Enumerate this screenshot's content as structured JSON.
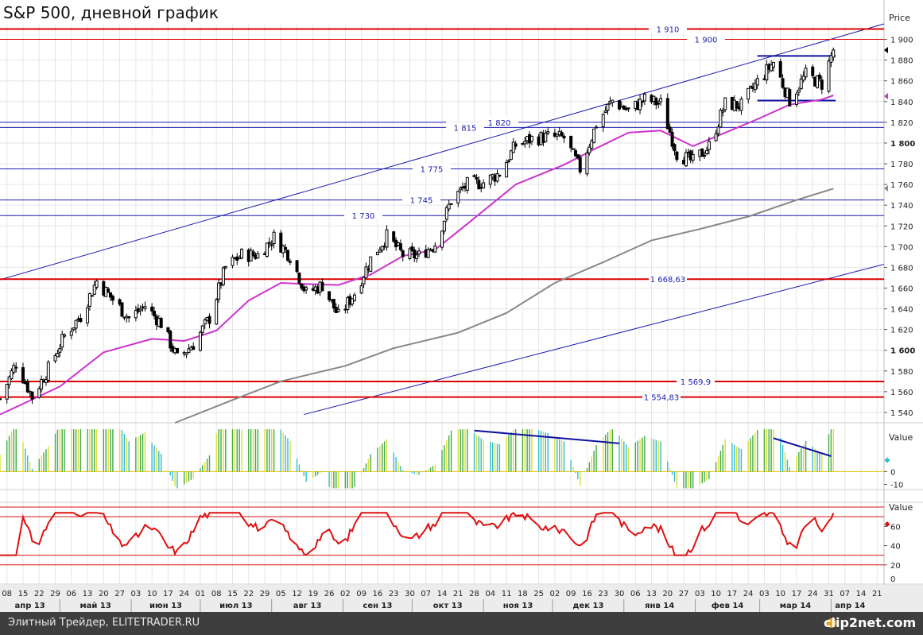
{
  "title": "S&P 500, дневной график",
  "footer": {
    "text": "Элитный Трейдер, ELITETRADER.RU",
    "logo": "clip2net.com"
  },
  "colors": {
    "grid": "#e6e6e6",
    "candle": "#000000",
    "sma_short": "#cc33cc",
    "sma_long": "#888888",
    "hline_red": "#dd0000",
    "hline_blue": "#1b1bb0",
    "osc_green": "#44aa44",
    "osc_cyan": "#33bbcc",
    "osc_yellow": "#dddd33",
    "rsi": "#dd1111"
  },
  "chart_data": [
    {
      "type": "candlestick",
      "title": "S&P 500, дневной график",
      "ylabel": "Price",
      "ylim": [
        1530,
        1915
      ],
      "y_ticks": [
        1540,
        1560,
        1580,
        1600,
        1620,
        1640,
        1660,
        1680,
        1700,
        1720,
        1740,
        1760,
        1780,
        1800,
        1820,
        1840,
        1860,
        1880,
        1900
      ],
      "y_tick_labels": [
        "1 540",
        "1 560",
        "1 580",
        "1 600",
        "1 620",
        "1 640",
        "1 660",
        "1 680",
        "1 700",
        "1 720",
        "1 740",
        "1 760",
        "1 780",
        "1 800",
        "1 820",
        "1 840",
        "1 860",
        "1 880",
        "1 900"
      ],
      "bold_ticks": [
        "1 600",
        "1 800"
      ],
      "x_start": "2013-04-05",
      "x_end": "2014-04-24",
      "x_tick_labels": [
        "08",
        "15",
        "22",
        "29",
        "06",
        "13",
        "20",
        "27",
        "03",
        "10",
        "17",
        "24",
        "01",
        "08",
        "15",
        "22",
        "29",
        "05",
        "12",
        "19",
        "26",
        "02",
        "09",
        "16",
        "23",
        "30",
        "07",
        "14",
        "21",
        "28",
        "04",
        "11",
        "18",
        "25",
        "02",
        "09",
        "16",
        "23",
        "30",
        "06",
        "13",
        "20",
        "27",
        "03",
        "10",
        "17",
        "24",
        "03",
        "10",
        "17",
        "24",
        "31",
        "07",
        "14",
        "21"
      ],
      "month_labels": [
        "апр 13",
        "май 13",
        "июн 13",
        "июл 13",
        "авг 13",
        "сен 13",
        "окт 13",
        "ноя 13",
        "дек 13",
        "янв 14",
        "фев 14",
        "мар 14",
        "апр 14"
      ],
      "horizontal_levels": [
        {
          "label": "1 910",
          "value": 1910,
          "color": "red"
        },
        {
          "label": "1 900",
          "value": 1900,
          "color": "red"
        },
        {
          "label": "1 820",
          "value": 1820,
          "color": "blue"
        },
        {
          "label": "1 815",
          "value": 1815,
          "color": "blue"
        },
        {
          "label": "1 775",
          "value": 1775,
          "color": "blue"
        },
        {
          "label": "1 745",
          "value": 1745,
          "color": "blue"
        },
        {
          "label": "1 730",
          "value": 1730,
          "color": "blue"
        },
        {
          "label": "1 668,63",
          "value": 1668.63,
          "color": "red"
        },
        {
          "label": "1 569,9",
          "value": 1569.9,
          "color": "red"
        },
        {
          "label": "1 554,83",
          "value": 1554.83,
          "color": "red"
        }
      ],
      "channel_lines": [
        {
          "from": [
            "2013-04-05",
            1668
          ],
          "to": [
            "2014-04-24",
            1915
          ]
        },
        {
          "from": [
            "2013-08-15",
            1538
          ],
          "to": [
            "2014-04-24",
            1683
          ]
        }
      ],
      "range_lines": [
        {
          "from": "2014-02-28",
          "to": "2014-04-03",
          "value": 1884
        },
        {
          "from": "2014-02-28",
          "to": "2014-04-03",
          "value": 1841
        }
      ],
      "series": [
        {
          "name": "close",
          "points": [
            [
              "2013-04-05",
              1553
            ],
            [
              "2013-04-12",
              1588
            ],
            [
              "2013-04-19",
              1555
            ],
            [
              "2013-04-26",
              1582
            ],
            [
              "2013-05-03",
              1614
            ],
            [
              "2013-05-10",
              1633
            ],
            [
              "2013-05-17",
              1667
            ],
            [
              "2013-05-24",
              1649
            ],
            [
              "2013-05-31",
              1631
            ],
            [
              "2013-06-07",
              1643
            ],
            [
              "2013-06-14",
              1626
            ],
            [
              "2013-06-21",
              1592
            ],
            [
              "2013-06-28",
              1606
            ],
            [
              "2013-07-05",
              1631
            ],
            [
              "2013-07-12",
              1680
            ],
            [
              "2013-07-19",
              1692
            ],
            [
              "2013-07-26",
              1692
            ],
            [
              "2013-08-02",
              1709
            ],
            [
              "2013-08-09",
              1691
            ],
            [
              "2013-08-16",
              1655
            ],
            [
              "2013-08-23",
              1663
            ],
            [
              "2013-08-30",
              1633
            ],
            [
              "2013-09-06",
              1655
            ],
            [
              "2013-09-13",
              1688
            ],
            [
              "2013-09-20",
              1710
            ],
            [
              "2013-09-27",
              1692
            ],
            [
              "2013-10-04",
              1691
            ],
            [
              "2013-10-11",
              1703
            ],
            [
              "2013-10-18",
              1745
            ],
            [
              "2013-10-25",
              1760
            ],
            [
              "2013-11-01",
              1762
            ],
            [
              "2013-11-08",
              1771
            ],
            [
              "2013-11-15",
              1798
            ],
            [
              "2013-11-22",
              1804
            ],
            [
              "2013-11-29",
              1806
            ],
            [
              "2013-12-06",
              1805
            ],
            [
              "2013-12-13",
              1775
            ],
            [
              "2013-12-20",
              1818
            ],
            [
              "2013-12-27",
              1841
            ],
            [
              "2014-01-03",
              1831
            ],
            [
              "2014-01-10",
              1842
            ],
            [
              "2014-01-17",
              1838
            ],
            [
              "2014-01-24",
              1790
            ],
            [
              "2014-01-31",
              1782
            ],
            [
              "2014-02-07",
              1797
            ],
            [
              "2014-02-14",
              1838
            ],
            [
              "2014-02-21",
              1836
            ],
            [
              "2014-02-28",
              1859
            ],
            [
              "2014-03-07",
              1878
            ],
            [
              "2014-03-14",
              1841
            ],
            [
              "2014-03-21",
              1866
            ],
            [
              "2014-03-28",
              1857
            ],
            [
              "2014-04-02",
              1890
            ]
          ]
        },
        {
          "name": "sma_short",
          "points": [
            [
              "2013-04-05",
              1538
            ],
            [
              "2013-05-01",
              1565
            ],
            [
              "2013-05-20",
              1598
            ],
            [
              "2013-06-10",
              1611
            ],
            [
              "2013-06-24",
              1609
            ],
            [
              "2013-07-08",
              1619
            ],
            [
              "2013-07-22",
              1648
            ],
            [
              "2013-08-05",
              1665
            ],
            [
              "2013-08-15",
              1664
            ],
            [
              "2013-08-30",
              1663
            ],
            [
              "2013-09-13",
              1673
            ],
            [
              "2013-09-27",
              1691
            ],
            [
              "2013-10-11",
              1697
            ],
            [
              "2013-10-25",
              1722
            ],
            [
              "2013-11-15",
              1760
            ],
            [
              "2013-12-06",
              1779
            ],
            [
              "2013-12-20",
              1795
            ],
            [
              "2014-01-03",
              1810
            ],
            [
              "2014-01-17",
              1812
            ],
            [
              "2014-01-31",
              1797
            ],
            [
              "2014-02-14",
              1810
            ],
            [
              "2014-02-28",
              1823
            ],
            [
              "2014-03-14",
              1837
            ],
            [
              "2014-03-28",
              1842
            ],
            [
              "2014-04-02",
              1846
            ]
          ]
        },
        {
          "name": "sma_long",
          "points": [
            [
              "2013-06-20",
              1530
            ],
            [
              "2013-07-15",
              1552
            ],
            [
              "2013-08-05",
              1570
            ],
            [
              "2013-09-02",
              1585
            ],
            [
              "2013-09-23",
              1602
            ],
            [
              "2013-10-21",
              1617
            ],
            [
              "2013-11-11",
              1636
            ],
            [
              "2013-12-02",
              1665
            ],
            [
              "2013-12-23",
              1685
            ],
            [
              "2014-01-13",
              1706
            ],
            [
              "2014-02-03",
              1717
            ],
            [
              "2014-02-24",
              1729
            ],
            [
              "2014-03-17",
              1745
            ],
            [
              "2014-04-02",
              1756
            ]
          ]
        }
      ]
    },
    {
      "type": "bar",
      "title": "",
      "ylabel": "Value",
      "ylim": [
        -14,
        38
      ],
      "y_ticks": [
        -10,
        0
      ],
      "y_tick_labels": [
        "-10",
        "0"
      ],
      "divergence_lines": [
        {
          "from": [
            "2013-10-28",
            32
          ],
          "to": [
            "2013-12-30",
            22
          ]
        },
        {
          "from": [
            "2014-03-07",
            26
          ],
          "to": [
            "2014-04-01",
            12
          ]
        }
      ]
    },
    {
      "type": "line",
      "title": "",
      "ylabel": "Value",
      "ylim": [
        0,
        85
      ],
      "y_ticks": [
        20,
        40,
        60
      ],
      "y_tick_labels": [
        "20",
        "40",
        "60"
      ],
      "extra_tick_labels": [
        "0"
      ],
      "levels": [
        20,
        30,
        70,
        80
      ]
    }
  ]
}
